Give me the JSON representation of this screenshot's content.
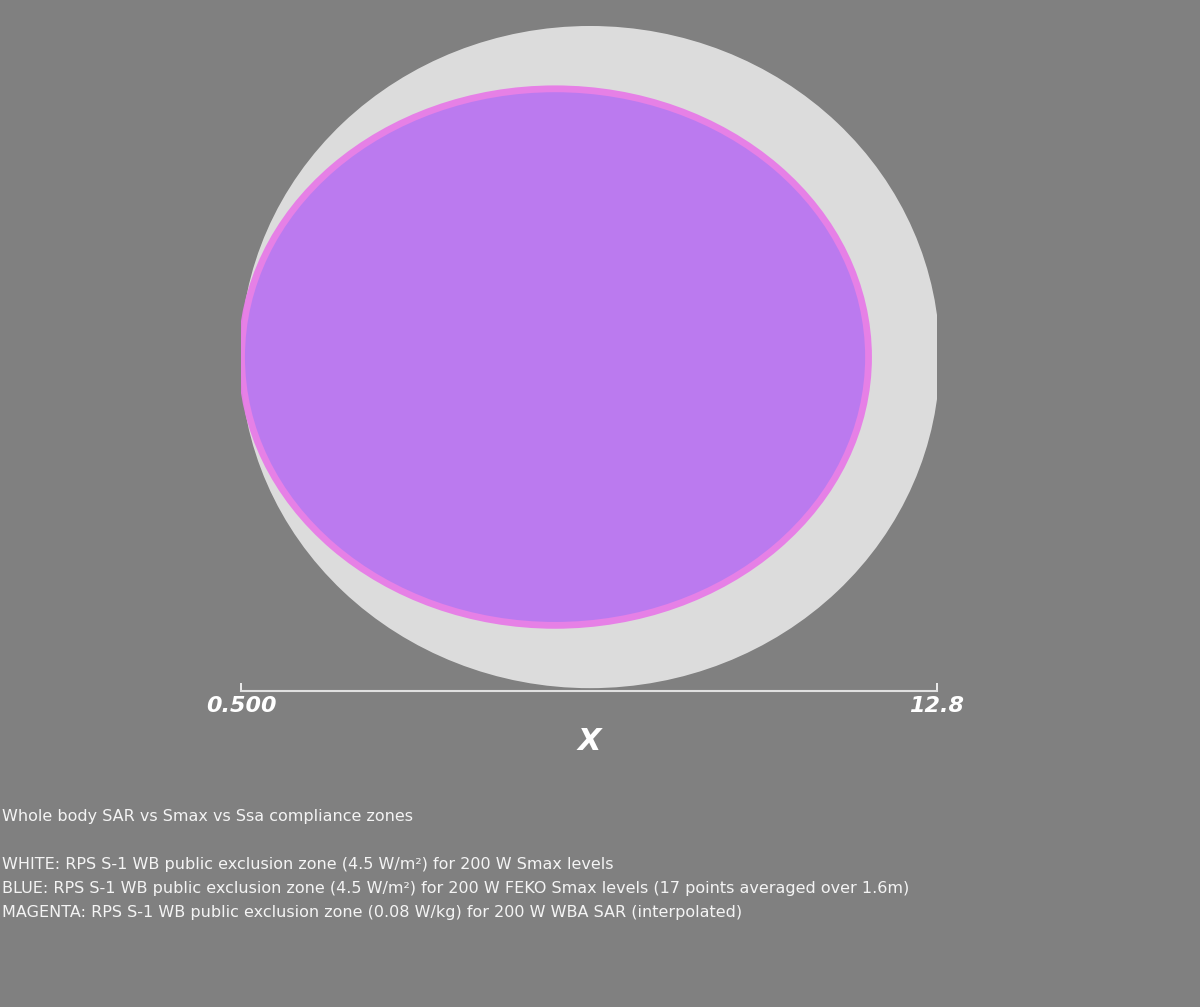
{
  "chart_data": {
    "type": "ellipse_zones",
    "title": "Whole body SAR vs Smax vs Ssa compliance zones",
    "xlabel": "X",
    "xlim": [
      0.5,
      12.8
    ],
    "xticks": [
      {
        "value": 0.5,
        "label": "0.500"
      },
      {
        "value": 12.8,
        "label": "12.8"
      }
    ],
    "ylim": [
      -5.9,
      5.9
    ],
    "tick_labels": "x",
    "series": [
      {
        "name": "WHITE: RPS S-1 WB public exclusion zone (4.5 W/m²) for 200 W Smax levels",
        "color": "#e2e2e2",
        "x_center": 6.67,
        "x_half_width": 6.18,
        "y_half_width": 5.85
      },
      {
        "name": "BLUE: RPS S-1 WB public exclusion zone (4.5 W/m²) for 200 W FEKO Smax levels (17 points averaged over 1.6m)",
        "color": "#b97af0",
        "x_center": 6.05,
        "x_half_width": 5.48,
        "y_half_width": 4.68
      },
      {
        "name": "MAGENTA: RPS S-1 WB public exclusion zone (0.08 W/kg) for 200 W WBA SAR (interpolated)",
        "color": "#e77be7",
        "x_center": 6.05,
        "x_half_width": 5.6,
        "y_half_width": 4.8
      }
    ]
  }
}
